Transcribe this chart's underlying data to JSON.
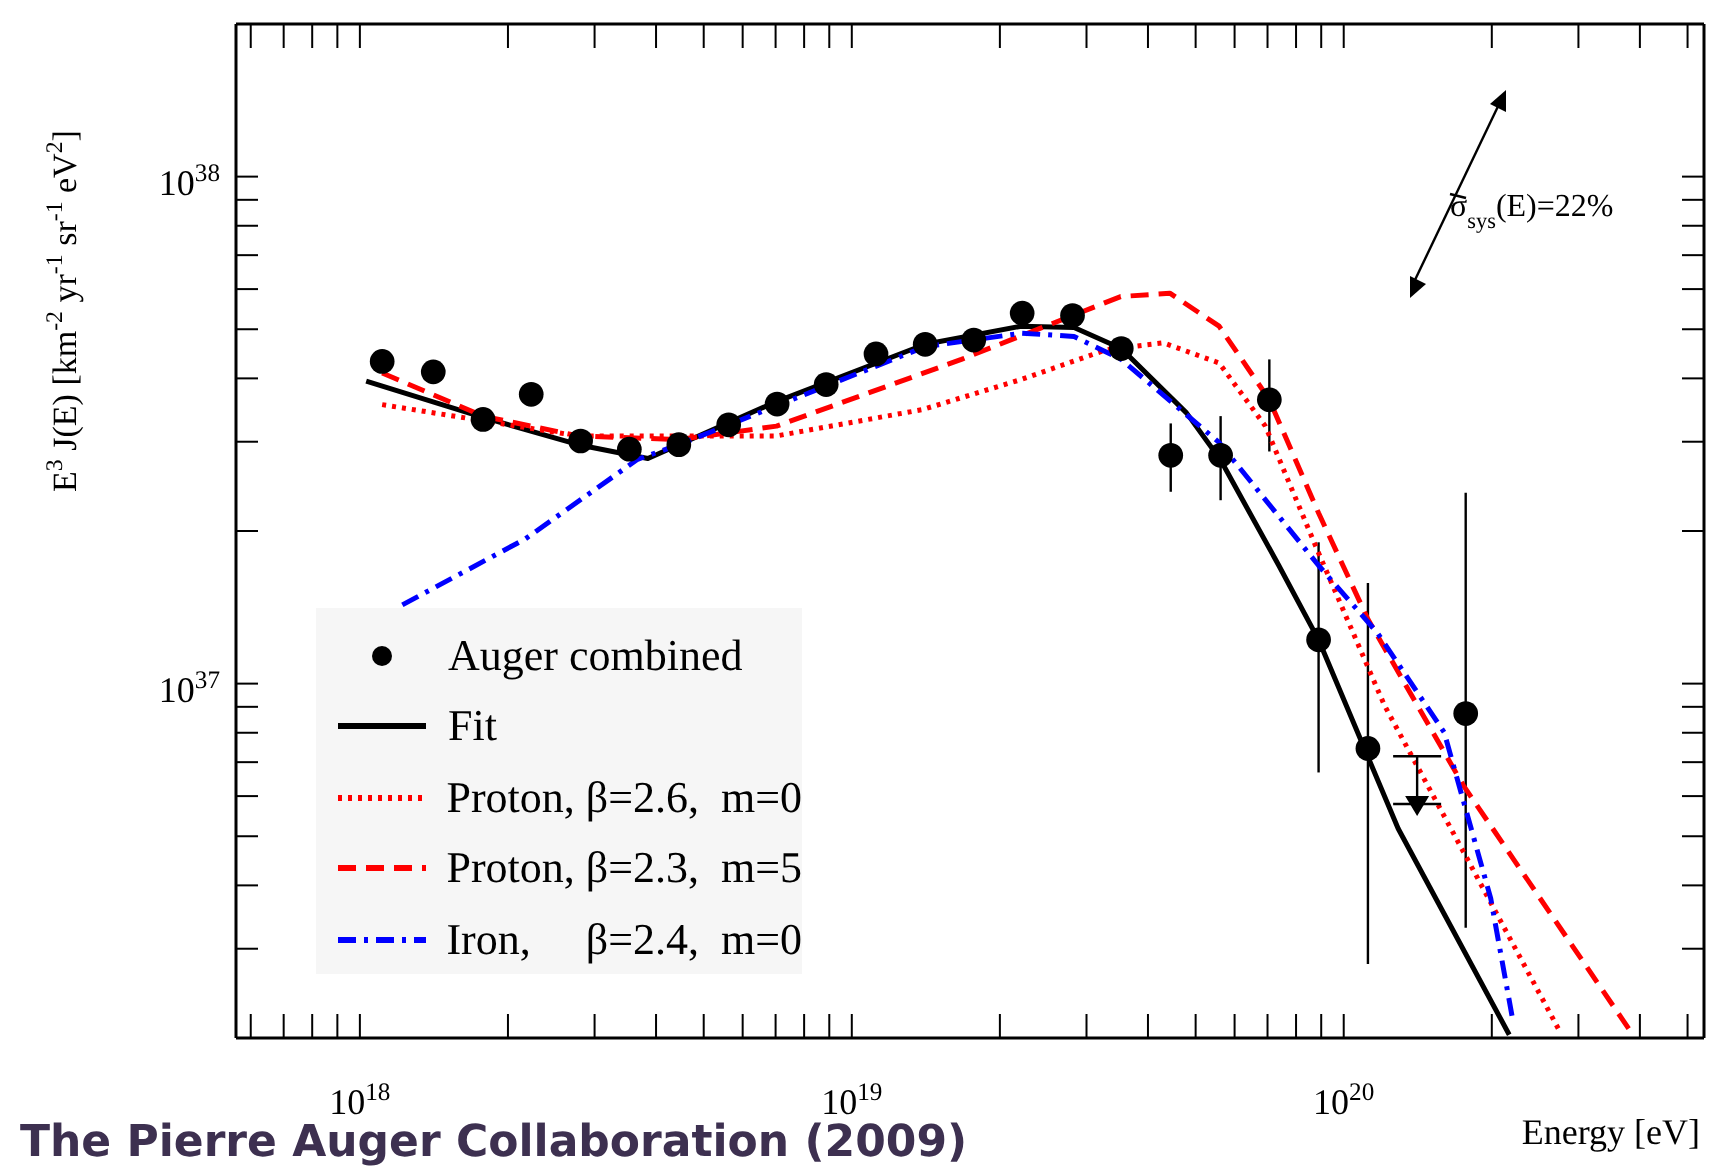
{
  "chart_data": {
    "type": "line",
    "xlabel": "Energy [eV]",
    "ylabel": "E$^{3}$ J(E) [km$^{-2}$ yr$^{-1}$ sr$^{-1}$ eV$^{2}$]",
    "annotations": [
      "σ$_{sys}$(E)=22%",
      "The Pierre Auger Collaboration (2009)"
    ],
    "log": "xy",
    "legend": "bottom left",
    "xlim": [
      5.6e+17,
      5.4e+20
    ],
    "ylim": [
      2e+36,
      2e+38
    ],
    "xticks": [
      {
        "value": 6e+17,
        "label": null
      },
      {
        "value": 7e+17,
        "label": null
      },
      {
        "value": 8e+17,
        "label": null
      },
      {
        "value": 9e+17,
        "label": null
      },
      {
        "value": 1e+18,
        "label": "10$^{18}$"
      },
      {
        "value": 2e+18,
        "label": null
      },
      {
        "value": 3e+18,
        "label": null
      },
      {
        "value": 4e+18,
        "label": null
      },
      {
        "value": 5e+18,
        "label": null
      },
      {
        "value": 6e+18,
        "label": null
      },
      {
        "value": 7e+18,
        "label": null
      },
      {
        "value": 8e+18,
        "label": null
      },
      {
        "value": 9e+18,
        "label": null
      },
      {
        "value": 1e+19,
        "label": "10$^{19}$"
      },
      {
        "value": 2e+19,
        "label": null
      },
      {
        "value": 3e+19,
        "label": null
      },
      {
        "value": 4e+19,
        "label": null
      },
      {
        "value": 5e+19,
        "label": null
      },
      {
        "value": 6e+19,
        "label": null
      },
      {
        "value": 7e+19,
        "label": null
      },
      {
        "value": 8e+19,
        "label": null
      },
      {
        "value": 9e+19,
        "label": null
      },
      {
        "value": 1e+20,
        "label": "10$^{20}$"
      },
      {
        "value": 2e+20,
        "label": null
      },
      {
        "value": 3e+20,
        "label": null
      },
      {
        "value": 4e+20,
        "label": null
      },
      {
        "value": 5e+20,
        "label": null
      }
    ],
    "yticks": [
      {
        "value": 3e+36,
        "label": null
      },
      {
        "value": 4e+36,
        "label": null
      },
      {
        "value": 5e+36,
        "label": null
      },
      {
        "value": 6e+36,
        "label": null
      },
      {
        "value": 7e+36,
        "label": null
      },
      {
        "value": 8e+36,
        "label": null
      },
      {
        "value": 9e+36,
        "label": null
      },
      {
        "value": 1e+37,
        "label": "10$^{37}$"
      },
      {
        "value": 2e+37,
        "label": null
      },
      {
        "value": 3e+37,
        "label": null
      },
      {
        "value": 4e+37,
        "label": null
      },
      {
        "value": 5e+37,
        "label": null
      },
      {
        "value": 6e+37,
        "label": null
      },
      {
        "value": 7e+37,
        "label": null
      },
      {
        "value": 8e+37,
        "label": null
      },
      {
        "value": 9e+37,
        "label": null
      },
      {
        "value": 1e+38,
        "label": "10$^{38}$"
      }
    ],
    "series": [
      {
        "name": "Auger combined",
        "type": "scatter",
        "marker": "circle",
        "color": "#000000",
        "x": [
          1.11e+18,
          1.41e+18,
          1.78e+18,
          2.23e+18,
          2.81e+18,
          3.53e+18,
          4.45e+18,
          5.62e+18,
          7.05e+18,
          8.87e+18,
          1.12e+19,
          1.41e+19,
          1.77e+19,
          2.22e+19,
          2.81e+19,
          3.53e+19,
          4.45e+19,
          5.62e+19,
          7.06e+19,
          8.89e+19,
          1.12e+20,
          1.77e+20
        ],
        "values": [
          4.32e+37,
          4.12e+37,
          3.32e+37,
          3.72e+37,
          3.01e+37,
          2.9e+37,
          2.96e+37,
          3.24e+37,
          3.56e+37,
          3.89e+37,
          4.47e+37,
          4.67e+37,
          4.76e+37,
          5.38e+37,
          5.32e+37,
          4.58e+37,
          2.82e+37,
          2.82e+37,
          3.63e+37,
          1.22e+37,
          7.45e+36,
          8.73e+36
        ],
        "errors": [
          null,
          null,
          null,
          null,
          null,
          null,
          null,
          null,
          null,
          null,
          null,
          null,
          null,
          null,
          null,
          null,
          [
            2.39e+37,
            3.26e+37
          ],
          [
            2.3e+37,
            3.37e+37
          ],
          [
            2.87e+37,
            4.36e+37
          ],
          [
            6.68e+36,
            1.9e+37
          ],
          [
            2.8e+36,
            1.58e+37
          ],
          [
            3.3e+36,
            2.38e+37
          ]
        ]
      },
      {
        "name": "Fit",
        "type": "line",
        "line_style": "solid",
        "color": "#000000",
        "x": [
          1.03e+18,
          1.78e+18,
          2.78e+18,
          3.85e+18,
          4.45e+18,
          7.03e+18,
          1.41e+19,
          2.21e+19,
          2.83e+19,
          3.53e+19,
          4.79e+19,
          5.62e+19,
          7.38e+19,
          8.89e+19,
          1.29e+20,
          2.17e+20
        ],
        "values": [
          3.95e+37,
          3.35e+37,
          2.96e+37,
          2.78e+37,
          2.96e+37,
          3.6e+37,
          4.67e+37,
          5.07e+37,
          5.04e+37,
          4.58e+37,
          3.42e+37,
          2.76e+37,
          1.71e+37,
          1.22e+37,
          5.18e+36,
          2.03e+36
        ]
      },
      {
        "name": "Proton, β=2.6,  m=0",
        "type": "line",
        "line_style": "dotted",
        "color": "#ff0000",
        "x": [
          1.11e+18,
          2.78e+18,
          7.03e+18,
          1.39e+19,
          2.21e+19,
          3.3e+19,
          4.3e+19,
          5.58e+19,
          6.93e+19,
          8.89e+19,
          1.21e+20,
          1.81e+20,
          2.75e+20
        ],
        "values": [
          3.55e+37,
          3.08e+37,
          3.08e+37,
          3.47e+37,
          3.98e+37,
          4.56e+37,
          4.7e+37,
          4.29e+37,
          3.22e+37,
          1.81e+37,
          9.06e+36,
          4.39e+36,
          2.06e+36
        ]
      },
      {
        "name": "Proton, β=2.3,  m=5",
        "type": "line",
        "line_style": "dashed",
        "color": "#ff0000",
        "x": [
          1.11e+18,
          1.78e+18,
          2.78e+18,
          4.45e+18,
          7.03e+18,
          1.67e+19,
          2.81e+19,
          3.52e+19,
          4.43e+19,
          5.58e+19,
          7.06e+19,
          8.89e+19,
          1.12e+20,
          1.75e+20,
          3.87e+20
        ],
        "values": [
          4.1e+37,
          3.37e+37,
          3.08e+37,
          3.03e+37,
          3.22e+37,
          4.36e+37,
          5.32e+37,
          5.8e+37,
          5.89e+37,
          5.07e+37,
          3.63e+37,
          2.17e+37,
          1.34e+37,
          6.3e+36,
          2.03e+36
        ]
      },
      {
        "name": "Iron,     β=2.4,  m=0",
        "type": "line",
        "line_style": "dashdot",
        "color": "#0000ff",
        "x": [
          1.22e+18,
          2.17e+18,
          3.67e+18,
          4.45e+18,
          1.41e+19,
          2.21e+19,
          2.83e+19,
          3.53e+19,
          5.58e+19,
          8.89e+19,
          1.17e+20,
          1.6e+20,
          1.99e+20,
          2.21e+20
        ],
        "values": [
          1.43e+37,
          1.93e+37,
          2.77e+37,
          2.96e+37,
          4.62e+37,
          4.91e+37,
          4.84e+37,
          4.36e+37,
          2.99e+37,
          1.71e+37,
          1.26e+37,
          8.02e+36,
          3.77e+36,
          2.15e+36
        ]
      },
      {
        "type": "scatter",
        "marker": "triangle",
        "color": "#000000",
        "x": [
          1.41e+20
        ],
        "values": [
          5.79e+36
        ],
        "errors": [
          [
            5.79e+36,
            7.19e+36
          ]
        ]
      }
    ]
  }
}
